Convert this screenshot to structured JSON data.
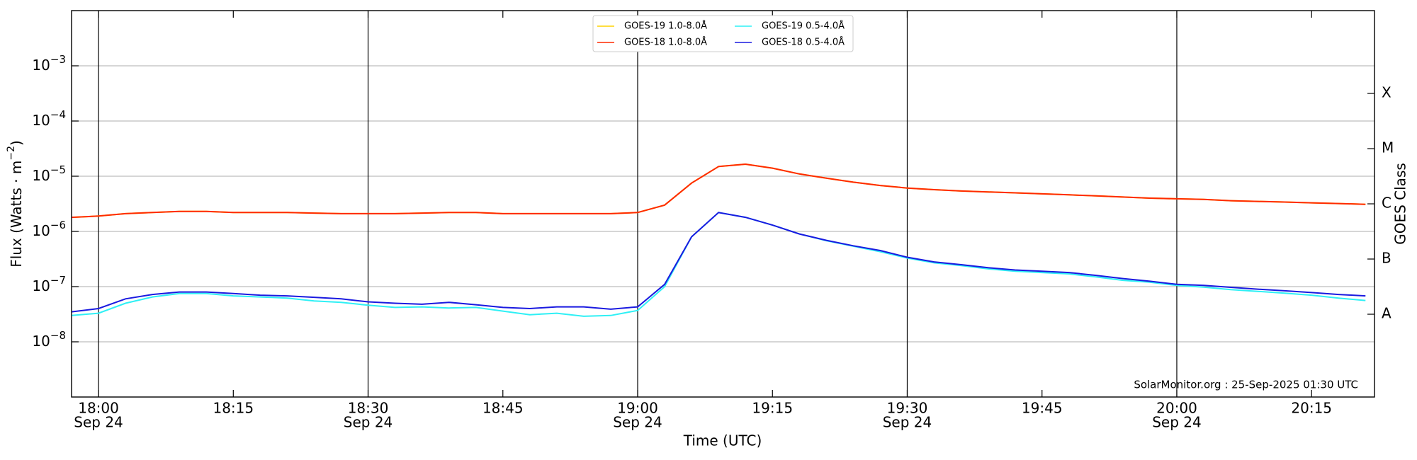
{
  "chart_data": {
    "type": "line",
    "xlabel": "Time (UTC)",
    "ylabel": {
      "text": "Flux (Watts · m",
      "sup": "−2",
      "tail": ")"
    },
    "y2label": "GOES Class",
    "annotation": "SolarMonitor.org : 25-Sep-2025 01:30 UTC",
    "log_y": true,
    "grid": true,
    "legend": "upper center",
    "xlim": [
      "17:57",
      "20:22"
    ],
    "xticks": [
      {
        "value": "18:00",
        "label": "18:00",
        "date": "Sep 24"
      },
      "18:15",
      {
        "value": "18:30",
        "label": "18:30",
        "date": "Sep 24"
      },
      "18:45",
      {
        "value": "19:00",
        "label": "19:00",
        "date": "Sep 24"
      },
      "19:15",
      {
        "value": "19:30",
        "label": "19:30",
        "date": "Sep 24"
      },
      "19:45",
      {
        "value": "20:00",
        "label": "20:00",
        "date": "Sep 24"
      },
      "20:15"
    ],
    "ylim": [
      1e-09,
      0.01
    ],
    "yticks": [
      {
        "value": 1e-08,
        "label": "10",
        "exponent": "−8"
      },
      {
        "value": 1e-07,
        "label": "10",
        "exponent": "−7"
      },
      {
        "value": 1e-06,
        "label": "10",
        "exponent": "−6"
      },
      {
        "value": 1e-05,
        "label": "10",
        "exponent": "−5"
      },
      {
        "value": 0.0001,
        "label": "10",
        "exponent": "−4"
      },
      {
        "value": 0.001,
        "label": "10",
        "exponent": "−3"
      }
    ],
    "y2lim": [
      1e-09,
      0.01
    ],
    "y2ticks": [
      {
        "value": 3.16e-08,
        "label": "A"
      },
      {
        "value": 3.16e-07,
        "label": "B"
      },
      {
        "value": 3.16e-06,
        "label": "C"
      },
      {
        "value": 3.16e-05,
        "label": "M"
      },
      {
        "value": 0.000316,
        "label": "X"
      }
    ],
    "x": [
      "17:57",
      "18:00",
      "18:03",
      "18:06",
      "18:09",
      "18:12",
      "18:15",
      "18:18",
      "18:21",
      "18:24",
      "18:27",
      "18:30",
      "18:33",
      "18:36",
      "18:39",
      "18:42",
      "18:45",
      "18:48",
      "18:51",
      "18:54",
      "18:57",
      "19:00",
      "19:03",
      "19:06",
      "19:09",
      "19:12",
      "19:15",
      "19:18",
      "19:21",
      "19:24",
      "19:27",
      "19:30",
      "19:33",
      "19:36",
      "19:39",
      "19:42",
      "19:45",
      "19:48",
      "19:51",
      "19:54",
      "19:57",
      "20:00",
      "20:03",
      "20:06",
      "20:09",
      "20:12",
      "20:15",
      "20:18",
      "20:21"
    ],
    "series": [
      {
        "name": "GOES-19 1.0-8.0Å",
        "color": "#ffd400",
        "values": [
          1.8e-06,
          1.9e-06,
          2.1e-06,
          2.2e-06,
          2.3e-06,
          2.3e-06,
          2.2e-06,
          2.2e-06,
          2.2e-06,
          2.15e-06,
          2.1e-06,
          2.1e-06,
          2.1e-06,
          2.15e-06,
          2.2e-06,
          2.2e-06,
          2.1e-06,
          2.1e-06,
          2.1e-06,
          2.1e-06,
          2.1e-06,
          2.2e-06,
          3e-06,
          7.5e-06,
          1.5e-05,
          1.65e-05,
          1.4e-05,
          1.1e-05,
          9.2e-06,
          7.8e-06,
          6.8e-06,
          6.1e-06,
          5.7e-06,
          5.4e-06,
          5.2e-06,
          5e-06,
          4.8e-06,
          4.6e-06,
          4.4e-06,
          4.2e-06,
          4e-06,
          3.9e-06,
          3.8e-06,
          3.6e-06,
          3.5e-06,
          3.4e-06,
          3.3e-06,
          3.2e-06,
          3.1e-06
        ]
      },
      {
        "name": "GOES-18 1.0-8.0Å",
        "color": "#ff2a00",
        "values": [
          1.8e-06,
          1.9e-06,
          2.1e-06,
          2.2e-06,
          2.3e-06,
          2.3e-06,
          2.2e-06,
          2.2e-06,
          2.2e-06,
          2.15e-06,
          2.1e-06,
          2.1e-06,
          2.1e-06,
          2.15e-06,
          2.2e-06,
          2.2e-06,
          2.1e-06,
          2.1e-06,
          2.1e-06,
          2.1e-06,
          2.1e-06,
          2.2e-06,
          3e-06,
          7.5e-06,
          1.5e-05,
          1.65e-05,
          1.4e-05,
          1.1e-05,
          9.2e-06,
          7.8e-06,
          6.8e-06,
          6.1e-06,
          5.7e-06,
          5.4e-06,
          5.2e-06,
          5e-06,
          4.8e-06,
          4.6e-06,
          4.4e-06,
          4.2e-06,
          4e-06,
          3.9e-06,
          3.8e-06,
          3.6e-06,
          3.5e-06,
          3.4e-06,
          3.3e-06,
          3.2e-06,
          3.1e-06
        ]
      },
      {
        "name": "GOES-19 0.5-4.0Å",
        "color": "#2ff0f5",
        "values": [
          3e-08,
          3.3e-08,
          5e-08,
          6.5e-08,
          7.5e-08,
          7.5e-08,
          6.8e-08,
          6.5e-08,
          6.2e-08,
          5.5e-08,
          5.2e-08,
          4.6e-08,
          4.2e-08,
          4.3e-08,
          4.1e-08,
          4.2e-08,
          3.6e-08,
          3.1e-08,
          3.3e-08,
          2.9e-08,
          3e-08,
          3.7e-08,
          1e-07,
          8e-07,
          2.2e-06,
          1.8e-06,
          1.3e-06,
          9e-07,
          6.8e-07,
          5.4e-07,
          4.3e-07,
          3.3e-07,
          2.7e-07,
          2.4e-07,
          2.1e-07,
          1.9e-07,
          1.8e-07,
          1.7e-07,
          1.5e-07,
          1.3e-07,
          1.2e-07,
          1.05e-07,
          9.8e-08,
          8.8e-08,
          8.2e-08,
          7.6e-08,
          7e-08,
          6.2e-08,
          5.6e-08
        ]
      },
      {
        "name": "GOES-18 0.5-4.0Å",
        "color": "#1a1ae0",
        "values": [
          3.5e-08,
          4e-08,
          6e-08,
          7.2e-08,
          8e-08,
          8e-08,
          7.5e-08,
          7e-08,
          6.8e-08,
          6.4e-08,
          6e-08,
          5.3e-08,
          5e-08,
          4.8e-08,
          5.2e-08,
          4.7e-08,
          4.2e-08,
          4e-08,
          4.3e-08,
          4.3e-08,
          3.9e-08,
          4.3e-08,
          1.1e-07,
          8e-07,
          2.2e-06,
          1.8e-06,
          1.3e-06,
          9e-07,
          6.9e-07,
          5.5e-07,
          4.5e-07,
          3.4e-07,
          2.8e-07,
          2.5e-07,
          2.2e-07,
          2e-07,
          1.9e-07,
          1.8e-07,
          1.6e-07,
          1.4e-07,
          1.25e-07,
          1.1e-07,
          1.05e-07,
          9.7e-08,
          9e-08,
          8.4e-08,
          7.8e-08,
          7.2e-08,
          6.8e-08
        ]
      }
    ]
  }
}
